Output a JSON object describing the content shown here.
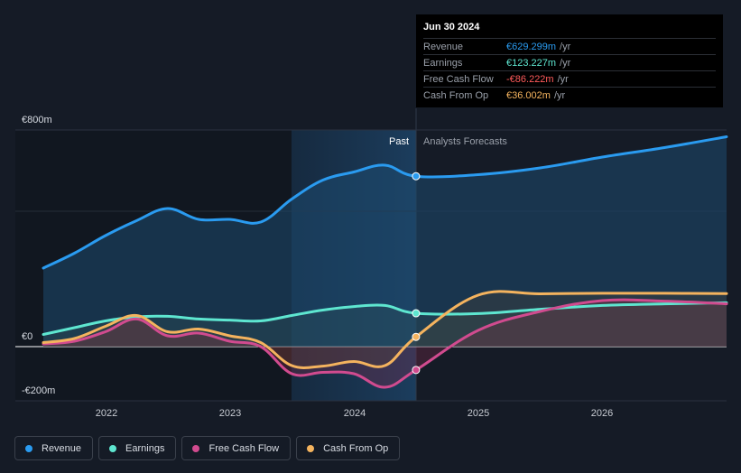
{
  "tooltip": {
    "date": "Jun 30 2024",
    "rows": [
      {
        "label": "Revenue",
        "value": "€629.299m",
        "unit": "/yr",
        "color": "#2a9bf0"
      },
      {
        "label": "Earnings",
        "value": "€123.227m",
        "unit": "/yr",
        "color": "#5ee6d0"
      },
      {
        "label": "Free Cash Flow",
        "value": "-€86.222m",
        "unit": "/yr",
        "color": "#ff5a5a"
      },
      {
        "label": "Cash From Op",
        "value": "€36.002m",
        "unit": "/yr",
        "color": "#f4b35e"
      }
    ]
  },
  "legend": [
    {
      "label": "Revenue",
      "color": "#2a9bf0"
    },
    {
      "label": "Earnings",
      "color": "#5ee6d0"
    },
    {
      "label": "Free Cash Flow",
      "color": "#d14b8f"
    },
    {
      "label": "Cash From Op",
      "color": "#f4b35e"
    }
  ],
  "chart_data": {
    "type": "line",
    "title": "",
    "xlabel": "",
    "ylabel": "",
    "y_unit": "€m",
    "ylim": [
      -200,
      800
    ],
    "xlim": [
      2021.5,
      2027.0
    ],
    "y_tick_labels": [
      "€800m",
      "€0",
      "-€200m"
    ],
    "x_tick_labels": [
      "2022",
      "2023",
      "2024",
      "2025",
      "2026"
    ],
    "past_label": "Past",
    "forecast_label": "Analysts Forecasts",
    "past_end": 2024.5,
    "series": [
      {
        "name": "Revenue",
        "color": "#2a9bf0",
        "x": [
          2021.5,
          2021.75,
          2022.0,
          2022.25,
          2022.5,
          2022.75,
          2023.0,
          2023.25,
          2023.5,
          2023.75,
          2024.0,
          2024.25,
          2024.5,
          2025.0,
          2025.5,
          2026.0,
          2026.5,
          2027.0
        ],
        "y": [
          290,
          345,
          410,
          465,
          510,
          470,
          470,
          460,
          545,
          615,
          645,
          670,
          629.3,
          635,
          660,
          700,
          735,
          775
        ]
      },
      {
        "name": "Earnings",
        "color": "#5ee6d0",
        "x": [
          2021.5,
          2021.75,
          2022.0,
          2022.25,
          2022.5,
          2022.75,
          2023.0,
          2023.25,
          2023.5,
          2023.75,
          2024.0,
          2024.25,
          2024.5,
          2025.0,
          2025.5,
          2026.0,
          2026.5,
          2027.0
        ],
        "y": [
          45,
          70,
          95,
          110,
          112,
          102,
          98,
          95,
          115,
          135,
          148,
          152,
          123.2,
          122,
          138,
          152,
          158,
          162
        ]
      },
      {
        "name": "Free Cash Flow",
        "color": "#d14b8f",
        "x": [
          2021.5,
          2021.75,
          2022.0,
          2022.25,
          2022.5,
          2022.75,
          2023.0,
          2023.25,
          2023.5,
          2023.75,
          2024.0,
          2024.25,
          2024.5,
          2025.0,
          2025.5,
          2026.0,
          2026.5,
          2027.0
        ],
        "y": [
          10,
          20,
          55,
          102,
          40,
          50,
          20,
          0,
          -100,
          -95,
          -100,
          -150,
          -86.2,
          60,
          130,
          170,
          168,
          158
        ]
      },
      {
        "name": "Cash From Op",
        "color": "#f4b35e",
        "x": [
          2021.5,
          2021.75,
          2022.0,
          2022.25,
          2022.5,
          2022.75,
          2023.0,
          2023.25,
          2023.5,
          2023.75,
          2024.0,
          2024.25,
          2024.5,
          2025.0,
          2025.5,
          2026.0,
          2026.5,
          2027.0
        ],
        "y": [
          15,
          30,
          75,
          115,
          55,
          65,
          40,
          15,
          -70,
          -72,
          -55,
          -70,
          36.0,
          190,
          195,
          197,
          197,
          196
        ]
      }
    ]
  }
}
